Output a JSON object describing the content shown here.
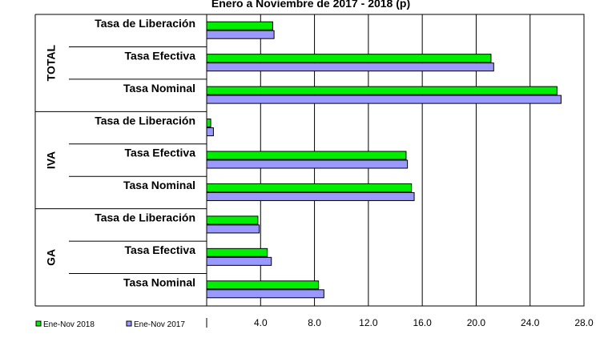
{
  "chart_data": {
    "type": "bar",
    "orientation": "horizontal",
    "title": "Enero a Noviembre de 2017 - 2018 (p)",
    "groups": [
      {
        "name": "TOTAL",
        "categories": [
          "Tasa de Liberación",
          "Tasa Efectiva",
          "Tasa Nominal"
        ]
      },
      {
        "name": "IVA",
        "categories": [
          "Tasa de Liberación",
          "Tasa Efectiva",
          "Tasa Nominal"
        ]
      },
      {
        "name": "GA",
        "categories": [
          "Tasa de Liberación",
          "Tasa Efectiva",
          "Tasa Nominal"
        ]
      }
    ],
    "series": [
      {
        "name": "Ene-Nov 2018",
        "color": "#00ee00",
        "values": [
          4.9,
          21.1,
          26.0,
          0.3,
          14.8,
          15.2,
          3.8,
          4.5,
          8.3
        ]
      },
      {
        "name": "Ene-Nov 2017",
        "color": "#9999ff",
        "values": [
          5.0,
          21.3,
          26.3,
          0.5,
          14.9,
          15.4,
          3.9,
          4.8,
          8.7
        ]
      }
    ],
    "xlim": [
      0,
      28
    ],
    "xticks": [
      "",
      "4.0",
      "8.0",
      "12.0",
      "16.0",
      "20.0",
      "24.0",
      "28.0"
    ],
    "grid": true,
    "legend_position": "bottom-left"
  }
}
